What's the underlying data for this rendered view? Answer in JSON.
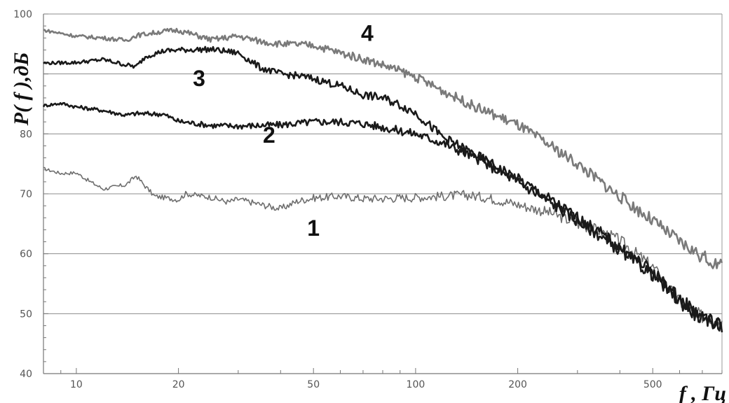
{
  "chart_data": {
    "type": "line",
    "title": "",
    "xlabel": "f , Гц",
    "ylabel": "P( f ),дБ",
    "x_scale": "log",
    "xlim": [
      8,
      800
    ],
    "ylim": [
      40,
      100
    ],
    "x_ticks": [
      10,
      20,
      50,
      100,
      200,
      500
    ],
    "x_tick_labels": [
      "10",
      "20",
      "50",
      "100",
      "200",
      "500"
    ],
    "y_ticks": [
      40,
      50,
      60,
      70,
      80,
      90,
      100
    ],
    "y_tick_labels": [
      "40",
      "50",
      "60",
      "70",
      "80",
      "",
      "100"
    ],
    "grid": "horizontal",
    "legend": "none",
    "series": [
      {
        "name": "1",
        "color": "#6e6e6e",
        "label_at": [
          50,
          63
        ],
        "points": [
          [
            8,
            74.2
          ],
          [
            9,
            73.4
          ],
          [
            10,
            73.5
          ],
          [
            11,
            72
          ],
          [
            12,
            70.8
          ],
          [
            14,
            71.5
          ],
          [
            15,
            73
          ],
          [
            16,
            71.2
          ],
          [
            17,
            69.6
          ],
          [
            20,
            69
          ],
          [
            21,
            70
          ],
          [
            25,
            69.4
          ],
          [
            28,
            68.6
          ],
          [
            30,
            69.1
          ],
          [
            35,
            68.2
          ],
          [
            40,
            67.5
          ],
          [
            45,
            68.8
          ],
          [
            50,
            69.3
          ],
          [
            60,
            69.6
          ],
          [
            70,
            69.2
          ],
          [
            80,
            69.2
          ],
          [
            100,
            69.4
          ],
          [
            120,
            69.6
          ],
          [
            140,
            69.8
          ],
          [
            160,
            69.4
          ],
          [
            180,
            68.8
          ],
          [
            200,
            68.2
          ],
          [
            250,
            66.8
          ],
          [
            300,
            65
          ],
          [
            350,
            63.8
          ],
          [
            400,
            62.2
          ],
          [
            500,
            57.8
          ],
          [
            600,
            52
          ],
          [
            700,
            49.5
          ],
          [
            800,
            48.5
          ]
        ]
      },
      {
        "name": "2",
        "color": "#1a1a1a",
        "label_at": [
          37,
          78.5
        ],
        "points": [
          [
            8,
            84.7
          ],
          [
            9,
            85.1
          ],
          [
            10,
            84.5
          ],
          [
            12,
            83.9
          ],
          [
            14,
            83.1
          ],
          [
            15,
            83.4
          ],
          [
            18,
            83.3
          ],
          [
            20,
            82.1
          ],
          [
            25,
            81.4
          ],
          [
            30,
            81.3
          ],
          [
            40,
            81.5
          ],
          [
            50,
            82
          ],
          [
            60,
            82
          ],
          [
            70,
            81.7
          ],
          [
            80,
            81.1
          ],
          [
            90,
            80.5
          ],
          [
            100,
            80
          ],
          [
            120,
            78.5
          ],
          [
            150,
            76
          ],
          [
            200,
            72
          ],
          [
            250,
            68.5
          ],
          [
            300,
            65.5
          ],
          [
            350,
            63
          ],
          [
            400,
            60.5
          ],
          [
            500,
            56.5
          ],
          [
            600,
            52
          ],
          [
            700,
            49
          ],
          [
            800,
            48
          ]
        ]
      },
      {
        "name": "3",
        "color": "#1a1a1a",
        "label_at": [
          23,
          88
        ],
        "points": [
          [
            8,
            91.8
          ],
          [
            10,
            91.9
          ],
          [
            12,
            92.4
          ],
          [
            14,
            91.5
          ],
          [
            15,
            91.2
          ],
          [
            16,
            92.9
          ],
          [
            18,
            93.8
          ],
          [
            20,
            94
          ],
          [
            25,
            94.1
          ],
          [
            30,
            93.5
          ],
          [
            35,
            91
          ],
          [
            40,
            90
          ],
          [
            45,
            89.7
          ],
          [
            50,
            89.2
          ],
          [
            60,
            88
          ],
          [
            70,
            86.5
          ],
          [
            80,
            86
          ],
          [
            90,
            84.8
          ],
          [
            100,
            83.5
          ],
          [
            120,
            79.5
          ],
          [
            150,
            76.5
          ],
          [
            200,
            72.5
          ],
          [
            250,
            69
          ],
          [
            300,
            66
          ],
          [
            350,
            63.5
          ],
          [
            400,
            61
          ],
          [
            500,
            57
          ],
          [
            600,
            52.5
          ],
          [
            700,
            49.5
          ],
          [
            800,
            48
          ]
        ]
      },
      {
        "name": "4",
        "color": "#7a7a7a",
        "label_at": [
          72,
          95.5
        ],
        "points": [
          [
            8,
            97.3
          ],
          [
            10,
            96.3
          ],
          [
            12,
            96
          ],
          [
            14,
            95.6
          ],
          [
            15,
            96.4
          ],
          [
            18,
            97.1
          ],
          [
            20,
            97.3
          ],
          [
            25,
            95.7
          ],
          [
            30,
            96.3
          ],
          [
            35,
            95.4
          ],
          [
            40,
            95
          ],
          [
            50,
            94.8
          ],
          [
            60,
            93.5
          ],
          [
            70,
            92.5
          ],
          [
            80,
            91.5
          ],
          [
            90,
            90.5
          ],
          [
            100,
            89.5
          ],
          [
            120,
            87.2
          ],
          [
            150,
            84.5
          ],
          [
            200,
            81.5
          ],
          [
            250,
            78
          ],
          [
            300,
            75
          ],
          [
            400,
            69.5
          ],
          [
            500,
            65.5
          ],
          [
            600,
            62
          ],
          [
            700,
            59.5
          ],
          [
            800,
            57.8
          ]
        ]
      }
    ]
  }
}
